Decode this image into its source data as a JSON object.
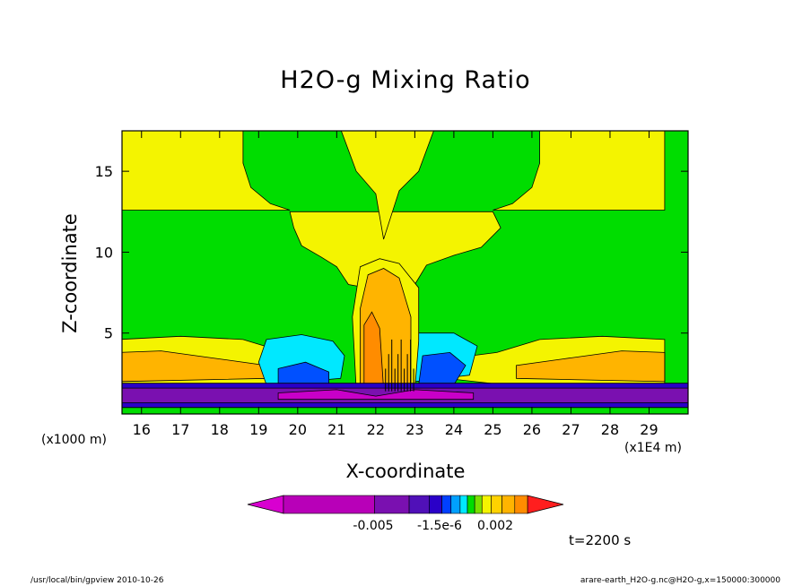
{
  "figure": {
    "title": "H2O-g Mixing Ratio",
    "unit_note": "(x1000 m)",
    "x_scale_note": "(x1E4 m)",
    "time_label": "t=2200 s",
    "footer_left": "/usr/local/bin/gpview  2010-10-26",
    "footer_right": "arare-earth_H2O-g.nc@H2O-g,x=150000:300000"
  },
  "colors": {
    "green": "#00dd00",
    "yellow": "#f4f400",
    "orange": "#ffb400",
    "dark_orange": "#ff8c00",
    "cyan": "#00e8ff",
    "blue": "#0050ff",
    "dark_blue": "#2a00c8",
    "purple": "#7a10b0",
    "magenta": "#c800c8",
    "red": "#ff1e1e"
  },
  "chart_data": {
    "type": "heatmap",
    "subtype": "filled-contour",
    "title": "H2O-g Mixing Ratio",
    "xlabel": "X-coordinate",
    "ylabel": "Z-coordinate",
    "xlim": [
      15.5,
      30.0
    ],
    "ylim": [
      0.0,
      17.5
    ],
    "x_ticks": [
      16,
      17,
      18,
      19,
      20,
      21,
      22,
      23,
      24,
      25,
      26,
      27,
      28,
      29
    ],
    "y_ticks": [
      5,
      10,
      15
    ],
    "colorbar": {
      "tick_labels": [
        "-0.005",
        "-1.5e-6",
        "0.002"
      ],
      "levels": 14,
      "colors": [
        "#d800d0",
        "#b800b8",
        "#7a10b0",
        "#5010b8",
        "#2a00c8",
        "#0040ff",
        "#00a0ff",
        "#00e8ff",
        "#00dd00",
        "#7ae000",
        "#f4f400",
        "#ffd200",
        "#ffb400",
        "#ff8c00",
        "#ff6c00",
        "#ff1e1e"
      ]
    },
    "regions": [
      {
        "name": "background",
        "value_class": "green"
      },
      {
        "name": "upper-left yellow band",
        "value_class": "yellow",
        "x_range": [
          15.5,
          18.5
        ],
        "z_range": [
          12.5,
          17.5
        ]
      },
      {
        "name": "upper-right yellow band",
        "value_class": "yellow",
        "x_range": [
          26.5,
          30.0
        ],
        "z_range": [
          12.5,
          17.5
        ]
      },
      {
        "name": "central yellow anvil",
        "value_class": "yellow",
        "x_range": [
          19.8,
          25.4
        ],
        "z_range": [
          7.5,
          12.5
        ]
      },
      {
        "name": "central plume (orange)",
        "value_class": "orange",
        "x_range": [
          21.5,
          23.0
        ],
        "z_range": [
          1.0,
          9.5
        ]
      },
      {
        "name": "central core (dark orange)",
        "value_class": "dark_orange",
        "x_range": [
          21.6,
          22.8
        ],
        "z_range": [
          1.5,
          8.5
        ]
      },
      {
        "name": "left cyan pocket",
        "value_class": "cyan",
        "x_range": [
          19.2,
          21.0
        ],
        "z_range": [
          1.5,
          4.8
        ]
      },
      {
        "name": "right cyan pocket",
        "value_class": "cyan",
        "x_range": [
          22.9,
          24.5
        ],
        "z_range": [
          1.5,
          5.0
        ]
      },
      {
        "name": "low-level negative layer",
        "value_class": "purple",
        "z_range": [
          0.5,
          1.7
        ]
      },
      {
        "name": "left low-level yellow/orange bands",
        "value_class": "orange",
        "x_range": [
          15.5,
          19.5
        ],
        "z_range": [
          1.5,
          4.8
        ]
      },
      {
        "name": "right low-level yellow/orange bands",
        "value_class": "orange",
        "x_range": [
          24.5,
          30.0
        ],
        "z_range": [
          1.5,
          4.8
        ]
      }
    ]
  }
}
